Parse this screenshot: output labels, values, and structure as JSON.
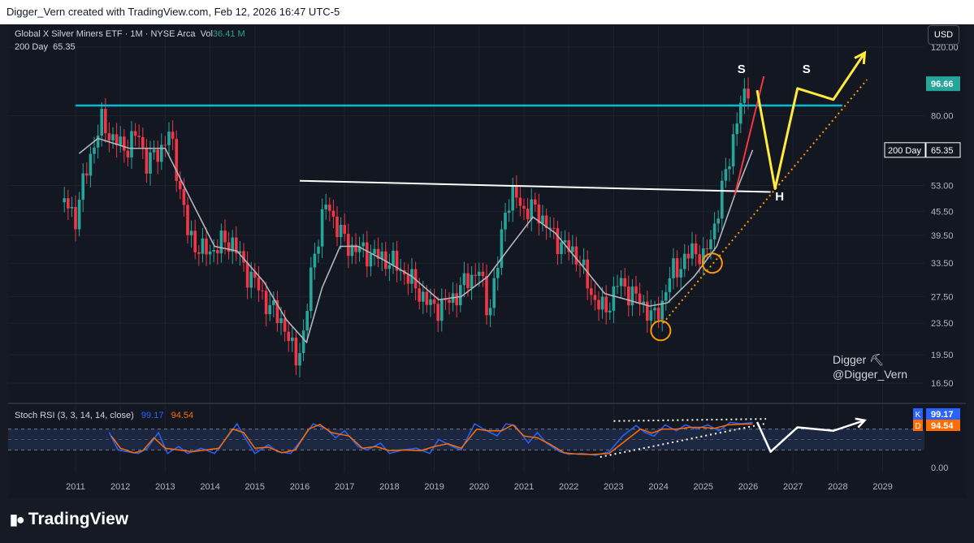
{
  "header": {
    "attribution": "Digger_Vern created with TradingView.com, Feb 12, 2026 16:47 UTC-5"
  },
  "legend": {
    "symbol": "Global X Silver Miners ETF · 1M · NYSE Arca",
    "vol_label": "Vol",
    "vol_value": "36.41 M",
    "ma_label": "200 Day",
    "ma_value": "65.35"
  },
  "currency_button": "USD",
  "watermark": {
    "line1": "Digger ⛏",
    "line2": "@Digger_Vern"
  },
  "branding": {
    "logo_text": "TradingView"
  },
  "chart_data": [
    {
      "type": "line",
      "title": "Global X Silver Miners ETF · 1M · NYSE Arca",
      "scale": "log",
      "y_ticks": [
        120.0,
        80.0,
        53.0,
        45.5,
        39.5,
        33.5,
        27.5,
        23.5,
        19.5,
        16.5
      ],
      "y_ticks_labels": [
        "120.00",
        "80.00",
        "53.00",
        "45.50",
        "39.50",
        "33.50",
        "27.50",
        "23.50",
        "19.50",
        "16.50"
      ],
      "x_ticks": [
        "2011",
        "2012",
        "2013",
        "2014",
        "2015",
        "2016",
        "2017",
        "2018",
        "2019",
        "2020",
        "2021",
        "2022",
        "2023",
        "2024",
        "2025",
        "2026",
        "2027",
        "2028",
        "2029"
      ],
      "ylim": [
        14.5,
        130
      ],
      "last_price": "96.66",
      "last_price_color": "#26a69a",
      "ma_price_label": "200 Day",
      "ma_price": "65.35",
      "up_color": "#26a69a",
      "down_color": "#f23645",
      "ma_color": "#b2b5be",
      "series": [
        {
          "name": "Price",
          "points": [
            [
              2010.75,
              48
            ],
            [
              2011.0,
              44
            ],
            [
              2011.3,
              62
            ],
            [
              2011.6,
              78
            ],
            [
              2011.8,
              70
            ],
            [
              2012.1,
              66
            ],
            [
              2012.4,
              72
            ],
            [
              2012.6,
              60
            ],
            [
              2012.9,
              66
            ],
            [
              2013.1,
              72
            ],
            [
              2013.3,
              55
            ],
            [
              2013.5,
              40
            ],
            [
              2013.8,
              36
            ],
            [
              2014.0,
              36
            ],
            [
              2014.3,
              38
            ],
            [
              2014.5,
              38
            ],
            [
              2014.8,
              32
            ],
            [
              2015.0,
              30
            ],
            [
              2015.3,
              26
            ],
            [
              2015.6,
              24
            ],
            [
              2015.9,
              19
            ],
            [
              2016.1,
              22
            ],
            [
              2016.3,
              35
            ],
            [
              2016.6,
              48
            ],
            [
              2016.9,
              40
            ],
            [
              2017.1,
              37
            ],
            [
              2017.4,
              36
            ],
            [
              2017.7,
              35
            ],
            [
              2018.0,
              34
            ],
            [
              2018.3,
              32
            ],
            [
              2018.6,
              29
            ],
            [
              2018.9,
              26
            ],
            [
              2019.2,
              26
            ],
            [
              2019.5,
              28
            ],
            [
              2019.8,
              31
            ],
            [
              2020.0,
              32
            ],
            [
              2020.2,
              25
            ],
            [
              2020.4,
              32
            ],
            [
              2020.6,
              48
            ],
            [
              2020.8,
              50
            ],
            [
              2021.0,
              46
            ],
            [
              2021.3,
              46
            ],
            [
              2021.6,
              40
            ],
            [
              2021.9,
              37
            ],
            [
              2022.2,
              35
            ],
            [
              2022.5,
              28
            ],
            [
              2022.8,
              25
            ],
            [
              2023.1,
              30
            ],
            [
              2023.4,
              28
            ],
            [
              2023.7,
              26
            ],
            [
              2023.9,
              24
            ],
            [
              2024.1,
              27
            ],
            [
              2024.3,
              32
            ],
            [
              2024.6,
              34
            ],
            [
              2024.8,
              37
            ],
            [
              2025.0,
              34
            ],
            [
              2025.3,
              44
            ],
            [
              2025.6,
              65
            ],
            [
              2025.8,
              82
            ],
            [
              2026.0,
              96.66
            ]
          ]
        },
        {
          "name": "200 Day",
          "points": [
            [
              2011.08,
              64
            ],
            [
              2011.5,
              70
            ],
            [
              2012.2,
              66
            ],
            [
              2013.0,
              66
            ],
            [
              2013.6,
              48
            ],
            [
              2014.1,
              37
            ],
            [
              2014.6,
              36
            ],
            [
              2015.2,
              30
            ],
            [
              2015.7,
              24
            ],
            [
              2016.15,
              21
            ],
            [
              2016.5,
              29
            ],
            [
              2016.9,
              37
            ],
            [
              2017.3,
              37
            ],
            [
              2017.9,
              34
            ],
            [
              2018.5,
              31
            ],
            [
              2019.1,
              27
            ],
            [
              2019.6,
              27.5
            ],
            [
              2020.2,
              31
            ],
            [
              2020.7,
              37
            ],
            [
              2021.2,
              44
            ],
            [
              2021.7,
              40
            ],
            [
              2022.3,
              33
            ],
            [
              2022.8,
              28
            ],
            [
              2023.3,
              27
            ],
            [
              2023.8,
              26
            ],
            [
              2024.2,
              26.5
            ],
            [
              2024.8,
              31
            ],
            [
              2025.3,
              37
            ],
            [
              2025.7,
              50
            ],
            [
              2026.1,
              65.35
            ]
          ]
        }
      ],
      "annotations": [
        {
          "type": "hline",
          "label": "resistance",
          "y": 85,
          "x0": 2011.0,
          "x1": 2028.1,
          "color": "#00bcd4"
        },
        {
          "type": "trendline",
          "label": "neckline",
          "from": [
            2016.0,
            54.5
          ],
          "to": [
            2026.5,
            51
          ],
          "color": "#ffffff"
        },
        {
          "type": "trendline",
          "label": "red uptrend",
          "from": [
            2025.7,
            50
          ],
          "to": [
            2026.35,
            101
          ],
          "color": "#f23645"
        },
        {
          "type": "dotted",
          "label": "orange support",
          "from": [
            2024.1,
            23.5
          ],
          "to": [
            2028.65,
            99
          ],
          "color": "#ff9800"
        },
        {
          "type": "projection",
          "color": "#ffeb3b",
          "points": [
            [
              2026.2,
              93
            ],
            [
              2026.6,
              52
            ],
            [
              2027.1,
              94
            ],
            [
              2027.9,
              88
            ],
            [
              2028.6,
              116
            ]
          ]
        },
        {
          "type": "circle",
          "at": [
            2024.05,
            22.5
          ],
          "color": "#ff9800"
        },
        {
          "type": "circle",
          "at": [
            2025.2,
            33.5
          ],
          "color": "#ff9800"
        },
        {
          "type": "text",
          "text": "S",
          "at": [
            2025.85,
            103
          ],
          "color": "#ffffff"
        },
        {
          "type": "text",
          "text": "S",
          "at": [
            2027.3,
            103
          ],
          "color": "#ffffff"
        },
        {
          "type": "text",
          "text": "H",
          "at": [
            2026.7,
            48.5
          ],
          "color": "#ffffff"
        }
      ]
    },
    {
      "type": "line",
      "title": "Stoch RSI (3, 3, 14, 14, close)",
      "k_label": "K",
      "k_value": "99.17",
      "d_label": "D",
      "d_value": "94.54",
      "y_ticks_labels": [
        "0.00"
      ],
      "ylim": [
        0,
        100
      ],
      "bands": [
        80,
        20
      ],
      "series": [
        {
          "name": "K",
          "color": "#2962ff",
          "points": [
            [
              2011.75,
              70
            ],
            [
              2011.95,
              20
            ],
            [
              2012.15,
              15
            ],
            [
              2012.4,
              10
            ],
            [
              2012.6,
              25
            ],
            [
              2012.85,
              70
            ],
            [
              2013.05,
              10
            ],
            [
              2013.3,
              30
            ],
            [
              2013.5,
              10
            ],
            [
              2013.8,
              25
            ],
            [
              2014.1,
              10
            ],
            [
              2014.4,
              60
            ],
            [
              2014.6,
              95
            ],
            [
              2014.8,
              50
            ],
            [
              2015.0,
              10
            ],
            [
              2015.3,
              35
            ],
            [
              2015.5,
              15
            ],
            [
              2015.8,
              10
            ],
            [
              2016.1,
              60
            ],
            [
              2016.3,
              95
            ],
            [
              2016.6,
              80
            ],
            [
              2016.8,
              55
            ],
            [
              2017.0,
              75
            ],
            [
              2017.3,
              30
            ],
            [
              2017.5,
              20
            ],
            [
              2017.8,
              40
            ],
            [
              2018.0,
              10
            ],
            [
              2018.3,
              20
            ],
            [
              2018.6,
              25
            ],
            [
              2018.9,
              10
            ],
            [
              2019.1,
              50
            ],
            [
              2019.4,
              30
            ],
            [
              2019.6,
              20
            ],
            [
              2019.9,
              95
            ],
            [
              2020.1,
              80
            ],
            [
              2020.4,
              60
            ],
            [
              2020.6,
              95
            ],
            [
              2020.8,
              90
            ],
            [
              2021.1,
              40
            ],
            [
              2021.3,
              70
            ],
            [
              2021.5,
              40
            ],
            [
              2021.8,
              15
            ],
            [
              2022.0,
              8
            ],
            [
              2022.3,
              10
            ],
            [
              2022.6,
              5
            ],
            [
              2022.9,
              15
            ],
            [
              2023.2,
              60
            ],
            [
              2023.5,
              90
            ],
            [
              2023.7,
              70
            ],
            [
              2023.9,
              60
            ],
            [
              2024.15,
              92
            ],
            [
              2024.4,
              75
            ],
            [
              2024.6,
              92
            ],
            [
              2024.85,
              80
            ],
            [
              2025.1,
              92
            ],
            [
              2025.35,
              75
            ],
            [
              2025.6,
              99
            ],
            [
              2025.85,
              95
            ],
            [
              2026.1,
              99.17
            ]
          ]
        },
        {
          "name": "D",
          "color": "#ff6d00",
          "points": [
            [
              2011.8,
              60
            ],
            [
              2012.0,
              25
            ],
            [
              2012.3,
              12
            ],
            [
              2012.5,
              18
            ],
            [
              2012.75,
              55
            ],
            [
              2013.0,
              25
            ],
            [
              2013.3,
              20
            ],
            [
              2013.6,
              15
            ],
            [
              2013.9,
              20
            ],
            [
              2014.2,
              25
            ],
            [
              2014.5,
              80
            ],
            [
              2014.75,
              70
            ],
            [
              2015.0,
              25
            ],
            [
              2015.3,
              28
            ],
            [
              2015.6,
              12
            ],
            [
              2015.9,
              20
            ],
            [
              2016.2,
              80
            ],
            [
              2016.45,
              93
            ],
            [
              2016.7,
              70
            ],
            [
              2016.9,
              65
            ],
            [
              2017.1,
              60
            ],
            [
              2017.4,
              25
            ],
            [
              2017.7,
              30
            ],
            [
              2018.0,
              18
            ],
            [
              2018.3,
              20
            ],
            [
              2018.7,
              18
            ],
            [
              2019.0,
              30
            ],
            [
              2019.3,
              38
            ],
            [
              2019.6,
              25
            ],
            [
              2019.95,
              80
            ],
            [
              2020.2,
              75
            ],
            [
              2020.5,
              75
            ],
            [
              2020.75,
              92
            ],
            [
              2021.0,
              60
            ],
            [
              2021.3,
              55
            ],
            [
              2021.6,
              35
            ],
            [
              2021.9,
              12
            ],
            [
              2022.2,
              8
            ],
            [
              2022.5,
              7
            ],
            [
              2022.9,
              10
            ],
            [
              2023.3,
              50
            ],
            [
              2023.6,
              80
            ],
            [
              2023.85,
              68
            ],
            [
              2024.1,
              80
            ],
            [
              2024.4,
              80
            ],
            [
              2024.7,
              85
            ],
            [
              2024.95,
              85
            ],
            [
              2025.25,
              82
            ],
            [
              2025.55,
              92
            ],
            [
              2025.85,
              94
            ],
            [
              2026.1,
              94.54
            ]
          ]
        }
      ],
      "annotations": [
        {
          "type": "dotted",
          "label": "lower trend",
          "from": [
            2022.7,
            0
          ],
          "to": [
            2026.4,
            96
          ],
          "color": "#ffffff"
        },
        {
          "type": "dotted",
          "label": "upper trend",
          "from": [
            2023.0,
            103
          ],
          "to": [
            2026.4,
            109
          ],
          "color": "#ffffff"
        },
        {
          "type": "projection",
          "color": "#ffffff",
          "points": [
            [
              2026.2,
              100
            ],
            [
              2026.5,
              15
            ],
            [
              2027.1,
              85
            ],
            [
              2027.9,
              75
            ],
            [
              2028.6,
              105
            ]
          ]
        }
      ]
    }
  ]
}
